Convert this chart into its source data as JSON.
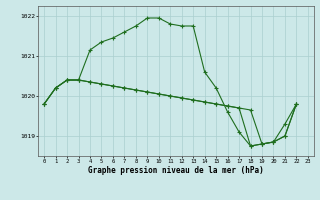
{
  "line_peaked": [
    1019.8,
    1020.2,
    1020.4,
    1020.4,
    1021.15,
    1021.35,
    1021.45,
    1021.6,
    1021.75,
    1021.95,
    1021.95,
    1021.8,
    1021.75,
    1021.75,
    1020.6,
    1020.2,
    1019.6,
    1019.1,
    1018.75,
    1018.8,
    1018.85,
    1019.3,
    1019.8,
    null
  ],
  "line_flat": [
    1019.8,
    1020.2,
    1020.4,
    1020.4,
    1020.35,
    1020.3,
    1020.25,
    1020.2,
    1020.15,
    1020.1,
    1020.05,
    1020.0,
    1019.95,
    1019.9,
    1019.85,
    1019.8,
    1019.75,
    1019.7,
    1019.65,
    1018.8,
    1018.85,
    1019.0,
    1019.8,
    null
  ],
  "line_diag": [
    1019.8,
    1020.2,
    1020.4,
    1020.4,
    1020.35,
    1020.3,
    1020.25,
    1020.2,
    1020.15,
    1020.1,
    1020.05,
    1020.0,
    1019.95,
    1019.9,
    1019.85,
    1019.8,
    1019.75,
    1019.7,
    1018.75,
    1018.8,
    1018.85,
    1019.0,
    1019.8,
    null
  ],
  "bg_color": "#cce8e8",
  "line_color": "#1f6e1f",
  "grid_color": "#aacfcf",
  "xlabel": "Graphe pression niveau de la mer (hPa)",
  "ylim": [
    1018.5,
    1022.25
  ],
  "xlim": [
    -0.5,
    23.5
  ],
  "yticks": [
    1019,
    1020,
    1021,
    1022
  ],
  "xticks": [
    0,
    1,
    2,
    3,
    4,
    5,
    6,
    7,
    8,
    9,
    10,
    11,
    12,
    13,
    14,
    15,
    16,
    17,
    18,
    19,
    20,
    21,
    22,
    23
  ]
}
